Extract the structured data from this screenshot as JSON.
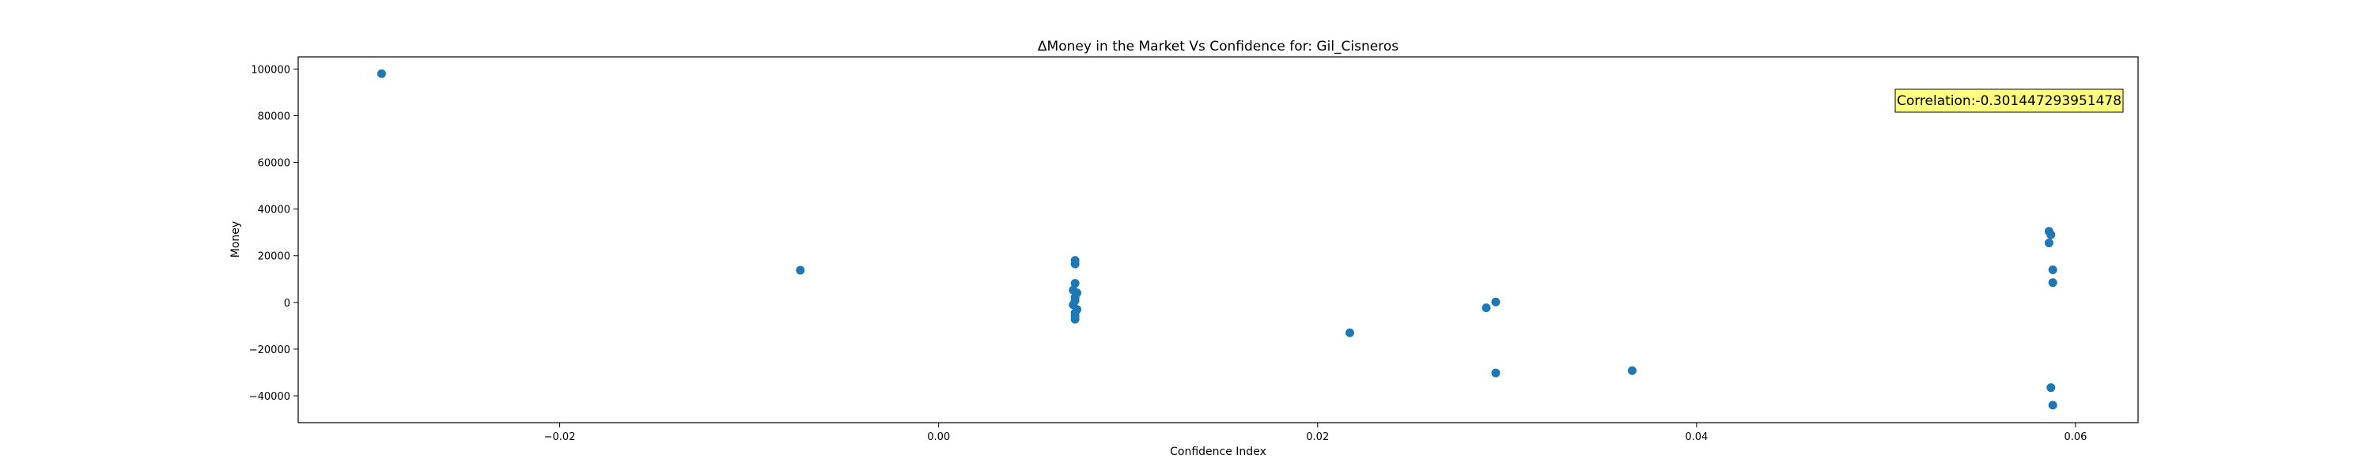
{
  "chart_data": {
    "type": "scatter",
    "title": "ΔMoney in the Market Vs Confidence for: Gil_Cisneros",
    "xlabel": "Confidence Index",
    "ylabel": "Money",
    "xlim": [
      -0.0338,
      0.0633
    ],
    "ylim": [
      -51500,
      105200
    ],
    "xticks": [
      -0.02,
      0.0,
      0.02,
      0.04,
      0.06
    ],
    "xtick_labels": [
      "−0.02",
      "0.00",
      "0.02",
      "0.04",
      "0.06"
    ],
    "yticks": [
      -40000,
      -20000,
      0,
      20000,
      40000,
      60000,
      80000,
      100000
    ],
    "ytick_labels": [
      "−40000",
      "−20000",
      "0",
      "20000",
      "40000",
      "60000",
      "80000",
      "100000"
    ],
    "grid": false,
    "marker_color": "#1f77b4",
    "annotation": {
      "text": "Correlation:-0.301447293951478",
      "position": "top-right",
      "background": "#ffff80"
    },
    "points": [
      {
        "x": -0.0294,
        "y": 98000
      },
      {
        "x": -0.0073,
        "y": 13800
      },
      {
        "x": 0.0072,
        "y": 18000
      },
      {
        "x": 0.0072,
        "y": 16500
      },
      {
        "x": 0.0072,
        "y": 8200
      },
      {
        "x": 0.0071,
        "y": 5300
      },
      {
        "x": 0.0073,
        "y": 4100
      },
      {
        "x": 0.0072,
        "y": 2200
      },
      {
        "x": 0.0072,
        "y": 800
      },
      {
        "x": 0.0071,
        "y": -1000
      },
      {
        "x": 0.0073,
        "y": -3000
      },
      {
        "x": 0.0072,
        "y": -4500
      },
      {
        "x": 0.0072,
        "y": -5800
      },
      {
        "x": 0.0072,
        "y": -7200
      },
      {
        "x": 0.0217,
        "y": -13000
      },
      {
        "x": 0.0289,
        "y": -2300
      },
      {
        "x": 0.0294,
        "y": 200
      },
      {
        "x": 0.0294,
        "y": -30200
      },
      {
        "x": 0.0366,
        "y": -29200
      },
      {
        "x": 0.0586,
        "y": 30500
      },
      {
        "x": 0.0587,
        "y": 29000
      },
      {
        "x": 0.0586,
        "y": 25500
      },
      {
        "x": 0.0588,
        "y": 14000
      },
      {
        "x": 0.0588,
        "y": 8500
      },
      {
        "x": 0.0587,
        "y": -36500
      },
      {
        "x": 0.0588,
        "y": -44000
      }
    ]
  }
}
